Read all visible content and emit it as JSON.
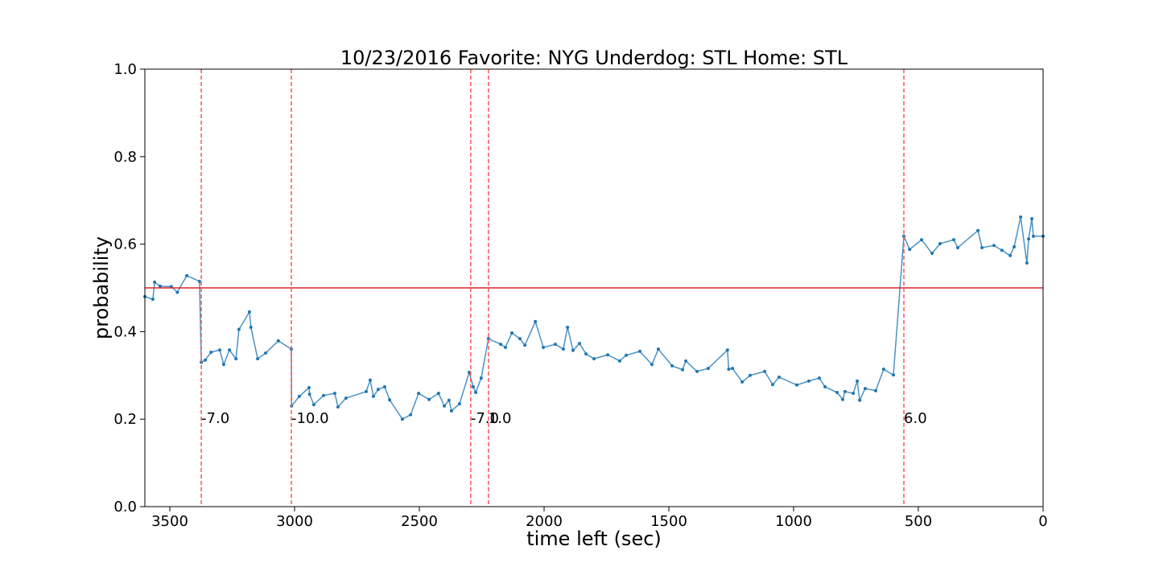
{
  "chart_data": {
    "type": "line",
    "title": "10/23/2016 Favorite: NYG Underdog: STL Home: STL",
    "x_label": "time left (sec)",
    "y_label": "probability",
    "xlim": [
      3600,
      0
    ],
    "ylim": [
      0,
      1
    ],
    "xticks": [
      3500,
      3000,
      2500,
      2000,
      1500,
      1000,
      500,
      0
    ],
    "yticks": [
      {
        "value": 0,
        "label": "0.0"
      },
      0.2,
      0.4,
      0.6,
      0.8,
      {
        "value": 1,
        "label": "1.0"
      }
    ],
    "series": [
      {
        "color": "#1f77b4",
        "x": [
          3600,
          3568,
          3561,
          3539,
          3494,
          3470,
          3432,
          3381,
          3374,
          3358,
          3335,
          3300,
          3284,
          3261,
          3235,
          3223,
          3181,
          3175,
          3148,
          3116,
          3065,
          3013,
          3012,
          2981,
          2942,
          2940,
          2923,
          2884,
          2839,
          2826,
          2794,
          2713,
          2697,
          2684,
          2665,
          2639,
          2619,
          2568,
          2535,
          2503,
          2461,
          2423,
          2400,
          2381,
          2371,
          2339,
          2300,
          2284,
          2274,
          2252,
          2223,
          2174,
          2155,
          2129,
          2097,
          2077,
          2035,
          2003,
          1955,
          1923,
          1906,
          1884,
          1858,
          1832,
          1800,
          1745,
          1697,
          1671,
          1616,
          1568,
          1542,
          1487,
          1445,
          1432,
          1387,
          1342,
          1265,
          1260,
          1245,
          1206,
          1174,
          1116,
          1084,
          1058,
          987,
          939,
          897,
          874,
          826,
          803,
          794,
          761,
          745,
          735,
          713,
          671,
          639,
          600,
          558,
          535,
          487,
          445,
          413,
          358,
          342,
          261,
          245,
          197,
          165,
          132,
          116,
          90,
          65,
          58,
          45,
          39,
          0
        ],
        "values": [
          0.48,
          0.474,
          0.513,
          0.504,
          0.503,
          0.49,
          0.528,
          0.515,
          0.33,
          0.335,
          0.353,
          0.358,
          0.325,
          0.358,
          0.338,
          0.405,
          0.445,
          0.41,
          0.338,
          0.351,
          0.379,
          0.36,
          0.23,
          0.252,
          0.272,
          0.257,
          0.233,
          0.254,
          0.259,
          0.228,
          0.248,
          0.263,
          0.289,
          0.252,
          0.268,
          0.274,
          0.244,
          0.2,
          0.21,
          0.259,
          0.245,
          0.259,
          0.23,
          0.243,
          0.219,
          0.235,
          0.307,
          0.274,
          0.261,
          0.294,
          0.384,
          0.371,
          0.364,
          0.397,
          0.384,
          0.369,
          0.423,
          0.364,
          0.371,
          0.36,
          0.41,
          0.357,
          0.373,
          0.349,
          0.338,
          0.347,
          0.333,
          0.346,
          0.355,
          0.325,
          0.36,
          0.322,
          0.313,
          0.333,
          0.309,
          0.316,
          0.358,
          0.314,
          0.316,
          0.285,
          0.3,
          0.309,
          0.279,
          0.296,
          0.278,
          0.287,
          0.294,
          0.274,
          0.261,
          0.245,
          0.263,
          0.259,
          0.287,
          0.243,
          0.27,
          0.265,
          0.314,
          0.301,
          0.618,
          0.588,
          0.61,
          0.579,
          0.601,
          0.61,
          0.592,
          0.631,
          0.592,
          0.597,
          0.586,
          0.574,
          0.594,
          0.662,
          0.557,
          0.612,
          0.658,
          0.618,
          0.618
        ]
      }
    ],
    "hline": {
      "y": 0.5,
      "color": "#d62728"
    },
    "vlines": [
      {
        "x": 3374,
        "label": "-7.0"
      },
      {
        "x": 3013,
        "label": "-10.0"
      },
      {
        "x": 2294,
        "label": "-7.0"
      },
      {
        "x": 2223,
        "label": "1.0"
      },
      {
        "x": 558,
        "label": "6.0"
      }
    ],
    "vline_label_y": 0.2,
    "vline_color": "#ff5555"
  }
}
